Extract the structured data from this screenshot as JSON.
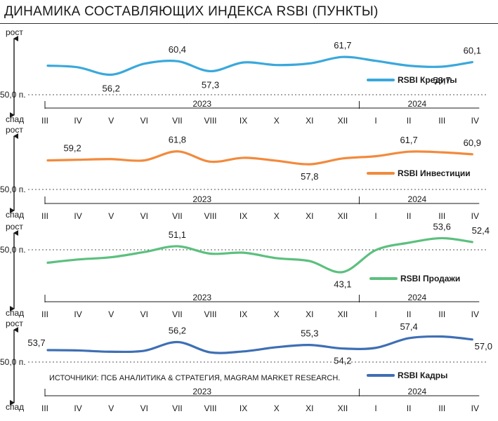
{
  "title": "ДИНАМИКА СОСТАВЛЯЮЩИХ ИНДЕКСА RSBI (ПУНКТЫ)",
  "source_note": "ИСТОЧНИКИ: ПСБ АНАЛИТИКА & СТРАТЕГИЯ, MAGRAM MARKET RESEARCH.",
  "axis": {
    "up_label": "рост",
    "down_label": "спад",
    "baseline_label": "50,0 п.",
    "baseline_value": 50.0
  },
  "chart_data": [
    {
      "type": "line",
      "series_name": "RSBI Кредиты",
      "color": "#3aa8dc",
      "categories": [
        "III",
        "IV",
        "V",
        "VI",
        "VII",
        "VIII",
        "IX",
        "X",
        "XI",
        "XII",
        "I",
        "II",
        "III",
        "IV"
      ],
      "years": [
        {
          "label": "2023",
          "from": 0,
          "to": 9
        },
        {
          "label": "2024",
          "from": 10,
          "to": 13
        }
      ],
      "values": [
        59.0,
        58.5,
        56.2,
        59.6,
        60.4,
        57.3,
        60.0,
        59.2,
        59.7,
        61.7,
        60.5,
        59.0,
        58.7,
        60.1
      ],
      "labels": [
        {
          "index": 2,
          "text": "56,2"
        },
        {
          "index": 4,
          "text": "60,4"
        },
        {
          "index": 5,
          "text": "57,3"
        },
        {
          "index": 9,
          "text": "61,7"
        },
        {
          "index": 12,
          "text": "58,7"
        },
        {
          "index": 13,
          "text": "60,1"
        }
      ]
    },
    {
      "type": "line",
      "series_name": "RSBI Инвестиции",
      "color": "#f28a3c",
      "categories": [
        "III",
        "IV",
        "V",
        "VI",
        "VII",
        "VIII",
        "IX",
        "X",
        "XI",
        "XII",
        "I",
        "II",
        "III",
        "IV"
      ],
      "years": [
        {
          "label": "2023",
          "from": 0,
          "to": 9
        },
        {
          "label": "2024",
          "from": 10,
          "to": 13
        }
      ],
      "values": [
        59.0,
        59.2,
        59.4,
        59.0,
        61.8,
        58.6,
        59.8,
        58.9,
        57.8,
        59.6,
        60.3,
        61.7,
        61.5,
        60.9
      ],
      "labels": [
        {
          "index": 1,
          "text": "59,2"
        },
        {
          "index": 4,
          "text": "61,8"
        },
        {
          "index": 8,
          "text": "57,8"
        },
        {
          "index": 11,
          "text": "61,7"
        },
        {
          "index": 13,
          "text": "60,9"
        }
      ]
    },
    {
      "type": "line",
      "series_name": "RSBI Продажи",
      "color": "#5cc07e",
      "categories": [
        "III",
        "IV",
        "V",
        "VI",
        "VII",
        "VIII",
        "IX",
        "X",
        "XI",
        "XII",
        "I",
        "II",
        "III",
        "IV"
      ],
      "years": [
        {
          "label": "2023",
          "from": 0,
          "to": 9
        },
        {
          "label": "2024",
          "from": 10,
          "to": 13
        }
      ],
      "values": [
        46.0,
        47.0,
        47.7,
        49.3,
        51.1,
        48.8,
        49.1,
        47.4,
        46.5,
        43.1,
        49.9,
        52.2,
        53.6,
        52.4
      ],
      "labels": [
        {
          "index": 4,
          "text": "51,1"
        },
        {
          "index": 9,
          "text": "43,1"
        },
        {
          "index": 12,
          "text": "53,6"
        },
        {
          "index": 13,
          "text": "52,4"
        }
      ]
    },
    {
      "type": "line",
      "series_name": "RSBI Кадры",
      "color": "#3e6fb4",
      "categories": [
        "III",
        "IV",
        "V",
        "VI",
        "VII",
        "VIII",
        "IX",
        "X",
        "XI",
        "XII",
        "I",
        "II",
        "III",
        "IV"
      ],
      "years": [
        {
          "label": "2023",
          "from": 0,
          "to": 9
        },
        {
          "label": "2024",
          "from": 10,
          "to": 13
        }
      ],
      "values": [
        53.7,
        53.6,
        53.2,
        53.5,
        56.2,
        53.0,
        53.3,
        54.6,
        55.3,
        54.2,
        54.4,
        57.4,
        57.9,
        57.0
      ],
      "labels": [
        {
          "index": 0,
          "text": "53,7"
        },
        {
          "index": 4,
          "text": "56,2"
        },
        {
          "index": 8,
          "text": "55,3"
        },
        {
          "index": 9,
          "text": "54,2"
        },
        {
          "index": 11,
          "text": "57,4"
        },
        {
          "index": 13,
          "text": "57,0"
        }
      ]
    }
  ]
}
